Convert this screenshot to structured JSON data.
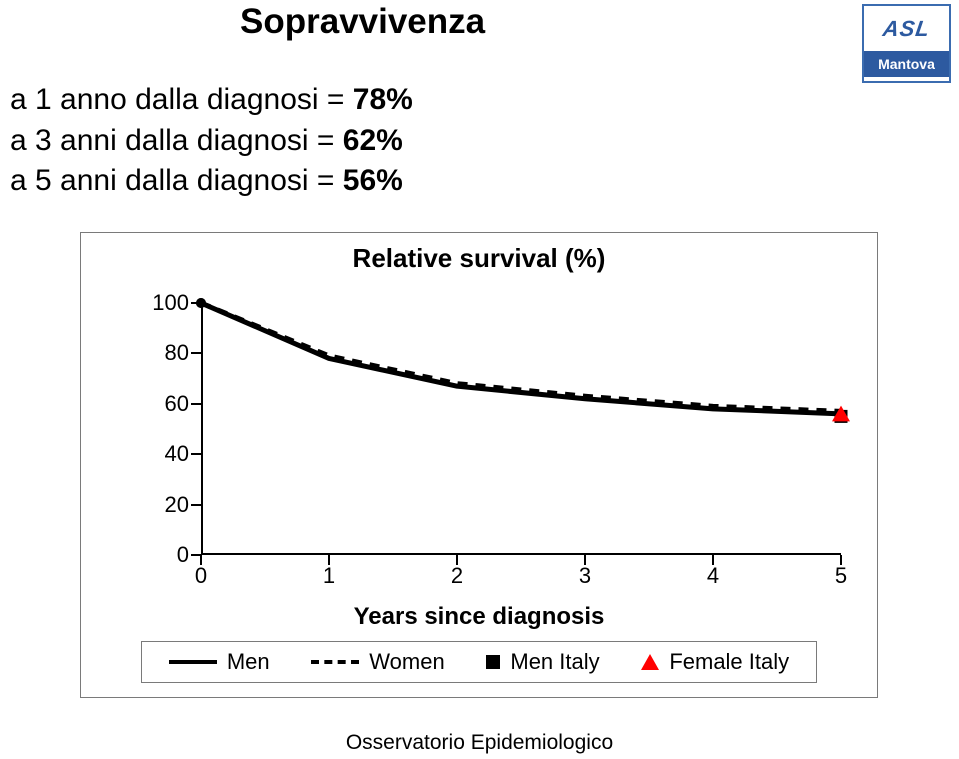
{
  "title": "Sopravvivenza",
  "logo": {
    "top": "ASL",
    "bottom": "Mantova"
  },
  "bullets": [
    {
      "text": "a 1 anno dalla diagnosi = ",
      "pct": "78%"
    },
    {
      "text": "a 3 anni dalla diagnosi = ",
      "pct": "62%"
    },
    {
      "text": "a 5 anni dalla diagnosi  = ",
      "pct": "56%"
    }
  ],
  "chart": {
    "type": "line",
    "title": "Relative survival (%)",
    "xlabel": "Years since diagnosis",
    "xlim": [
      0,
      5
    ],
    "ylim": [
      0,
      100
    ],
    "xticks": [
      0,
      1,
      2,
      3,
      4,
      5
    ],
    "yticks": [
      0,
      20,
      40,
      60,
      80,
      100
    ],
    "background_color": "#ffffff",
    "axis_color": "#000000",
    "series": {
      "men": {
        "label": "Men",
        "type": "line",
        "color": "#000000",
        "stroke_width": 5,
        "dash": "none",
        "x": [
          0,
          1,
          2,
          3,
          4,
          5
        ],
        "y": [
          100,
          78,
          67,
          62,
          58,
          56
        ]
      },
      "women": {
        "label": "Women",
        "type": "line",
        "color": "#000000",
        "stroke_width": 5,
        "dash": "10,8",
        "x": [
          0,
          1,
          2,
          3,
          4,
          5
        ],
        "y": [
          100,
          79,
          68,
          63,
          59,
          57
        ]
      },
      "men_italy": {
        "label": "Men Italy",
        "type": "marker",
        "marker": "square",
        "color": "#000000",
        "size": 13,
        "x": [
          5
        ],
        "y": [
          55
        ]
      },
      "female_italy": {
        "label": "Female Italy",
        "type": "marker",
        "marker": "triangle",
        "color": "#ff0000",
        "size": 15,
        "x": [
          5
        ],
        "y": [
          56
        ]
      }
    },
    "legend_order": [
      "men",
      "women",
      "men_italy",
      "female_italy"
    ]
  },
  "footer": "Osservatorio Epidemiologico"
}
